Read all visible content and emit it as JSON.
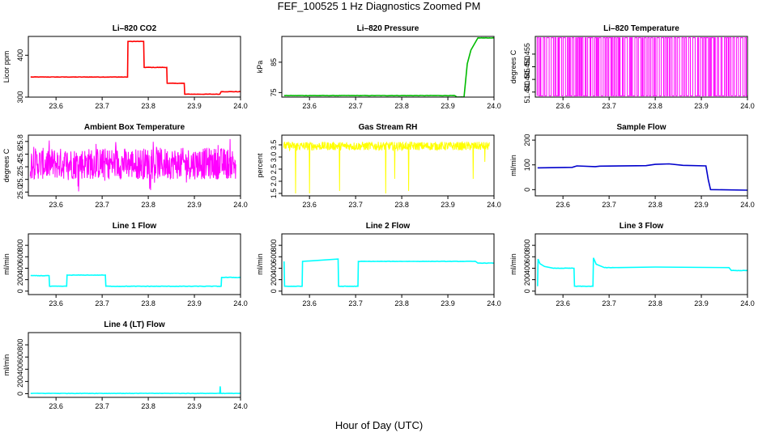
{
  "figure": {
    "title": "FEF_100525  1 Hz Diagnostics Zoomed PM",
    "xlabel": "Hour of Day (UTC)"
  },
  "chart_data": [
    {
      "type": "line",
      "id": "co2",
      "title": "Li–820 CO2",
      "ylabel": "Licor ppm",
      "color": "#ff0000",
      "xlim": [
        23.54,
        24.0
      ],
      "ylim": [
        300,
        445
      ],
      "xticks": [
        23.6,
        23.7,
        23.8,
        23.9,
        24.0
      ],
      "xtick_labels": [
        "23.6",
        "23.7",
        "23.8",
        "23.9",
        "24.0"
      ],
      "yticks": [
        300,
        400
      ],
      "ytick_labels": [
        "300",
        "400"
      ],
      "series": [
        {
          "x": [
            23.545,
            23.755,
            23.756,
            23.79,
            23.791,
            23.84,
            23.841,
            23.878,
            23.879,
            23.955,
            23.958,
            24.0
          ],
          "y": [
            348,
            348,
            433,
            433,
            371,
            371,
            333,
            333,
            307,
            307,
            313,
            313
          ]
        }
      ]
    },
    {
      "type": "line",
      "id": "pressure",
      "title": "Li–820 Pressure",
      "ylabel": "kPa",
      "color": "#00bb00",
      "xlim": [
        23.54,
        24.0
      ],
      "ylim": [
        73.5,
        93.5
      ],
      "xticks": [
        23.6,
        23.7,
        23.8,
        23.9,
        24.0
      ],
      "xtick_labels": [
        "23.6",
        "23.7",
        "23.8",
        "23.9",
        "24.0"
      ],
      "yticks": [
        75,
        85
      ],
      "ytick_labels": [
        "75",
        "85"
      ],
      "series": [
        {
          "x": [
            23.545,
            23.915,
            23.92,
            23.935,
            23.942,
            23.95,
            23.965,
            24.0
          ],
          "y": [
            74.0,
            74.0,
            73.5,
            73.5,
            84.5,
            89,
            93,
            93
          ]
        }
      ]
    },
    {
      "type": "line",
      "id": "temperature",
      "title": "Li–820 Temperature",
      "ylabel": "degrees C",
      "color": "#ff00ff",
      "xlim": [
        23.54,
        24.0
      ],
      "ylim": [
        51.438,
        51.462
      ],
      "xticks": [
        23.6,
        23.7,
        23.8,
        23.9,
        24.0
      ],
      "xtick_labels": [
        "23.6",
        "23.7",
        "23.8",
        "23.9",
        "24.0"
      ],
      "yticks": [
        51.44,
        51.445,
        51.45,
        51.455
      ],
      "ytick_labels": [
        "51.440",
        "51.445",
        "51.450",
        "51.455"
      ],
      "note": "value toggles between 51.4385 and 51.4615",
      "series": [
        {
          "low": 51.4385,
          "high": 51.4615
        }
      ]
    },
    {
      "type": "line",
      "id": "box-temp",
      "title": "Ambient Box Temperature",
      "ylabel": "degrees C",
      "color": "#ff00ff",
      "xlim": [
        23.54,
        24.0
      ],
      "ylim": [
        24.94,
        25.9
      ],
      "xticks": [
        23.6,
        23.7,
        23.8,
        23.9,
        24.0
      ],
      "xtick_labels": [
        "23.6",
        "23.7",
        "23.8",
        "23.9",
        "24.0"
      ],
      "yticks": [
        25.0,
        25.2,
        25.4,
        25.6,
        25.8
      ],
      "ytick_labels": [
        "25.0",
        "25.2",
        "25.4",
        "25.6",
        "25.8"
      ],
      "series": [
        {
          "mean": 25.45,
          "min": 25.0,
          "max": 25.85
        }
      ]
    },
    {
      "type": "line",
      "id": "rh",
      "title": "Gas Stream RH",
      "ylabel": "percent",
      "color": "#ffff00",
      "xlim": [
        23.54,
        24.0
      ],
      "ylim": [
        1.4,
        3.9
      ],
      "xticks": [
        23.6,
        23.7,
        23.8,
        23.9,
        24.0
      ],
      "xtick_labels": [
        "23.6",
        "23.7",
        "23.8",
        "23.9",
        "24.0"
      ],
      "yticks": [
        1.5,
        2.0,
        2.5,
        3.0,
        3.5
      ],
      "ytick_labels": [
        "1.5",
        "2.0",
        "2.5",
        "3.0",
        "3.5"
      ],
      "series": [
        {
          "mean": 3.45,
          "spikes_x": [
            23.57,
            23.6,
            23.665,
            23.765,
            23.785,
            23.815,
            23.955,
            23.98
          ],
          "spikes_y": [
            1.5,
            1.5,
            1.6,
            1.5,
            2.1,
            1.6,
            2.1,
            2.8
          ]
        }
      ]
    },
    {
      "type": "line",
      "id": "sample-flow",
      "title": "Sample Flow",
      "ylabel": "ml/min",
      "color": "#0000cc",
      "xlim": [
        23.54,
        24.0
      ],
      "ylim": [
        -25,
        220
      ],
      "xticks": [
        23.6,
        23.7,
        23.8,
        23.9,
        24.0
      ],
      "xtick_labels": [
        "23.6",
        "23.7",
        "23.8",
        "23.9",
        "24.0"
      ],
      "yticks": [
        0,
        100,
        200
      ],
      "ytick_labels": [
        "0",
        "100",
        "200"
      ],
      "series": [
        {
          "x": [
            23.545,
            23.62,
            23.63,
            23.67,
            23.68,
            23.78,
            23.8,
            23.83,
            23.86,
            23.91,
            23.915,
            23.92,
            24.0
          ],
          "y": [
            88,
            90,
            96,
            93,
            95,
            97,
            102,
            104,
            98,
            96,
            40,
            0,
            -2
          ]
        }
      ]
    },
    {
      "type": "line",
      "id": "line1",
      "title": "Line 1 Flow",
      "ylabel": "ml/min",
      "color": "#00ffff",
      "xlim": [
        23.54,
        24.0
      ],
      "ylim": [
        -60,
        1000
      ],
      "xticks": [
        23.6,
        23.7,
        23.8,
        23.9,
        24.0
      ],
      "xtick_labels": [
        "23.6",
        "23.7",
        "23.8",
        "23.9",
        "24.0"
      ],
      "yticks": [
        0,
        200,
        400,
        600,
        800
      ],
      "ytick_labels": [
        "0",
        "200",
        "400",
        "600",
        "800"
      ],
      "series": [
        {
          "x": [
            23.545,
            23.585,
            23.586,
            23.623,
            23.624,
            23.707,
            23.708,
            23.958,
            23.959,
            24.0
          ],
          "y": [
            270,
            270,
            85,
            85,
            280,
            280,
            85,
            85,
            240,
            240
          ]
        }
      ]
    },
    {
      "type": "line",
      "id": "line2",
      "title": "Line 2 Flow",
      "ylabel": "ml/min",
      "color": "#00ffff",
      "xlim": [
        23.54,
        24.0
      ],
      "ylim": [
        -60,
        1000
      ],
      "xticks": [
        23.6,
        23.7,
        23.8,
        23.9,
        24.0
      ],
      "xtick_labels": [
        "23.6",
        "23.7",
        "23.8",
        "23.9",
        "24.0"
      ],
      "yticks": [
        0,
        200,
        400,
        600,
        800
      ],
      "ytick_labels": [
        "0",
        "200",
        "400",
        "600",
        "800"
      ],
      "series": [
        {
          "x": [
            23.545,
            23.546,
            23.548,
            23.584,
            23.585,
            23.662,
            23.663,
            23.705,
            23.706,
            23.96,
            23.965,
            24.0
          ],
          "y": [
            520,
            85,
            85,
            85,
            520,
            560,
            85,
            85,
            520,
            520,
            490,
            490
          ]
        }
      ]
    },
    {
      "type": "line",
      "id": "line3",
      "title": "Line 3 Flow",
      "ylabel": "ml/min",
      "color": "#00ffff",
      "xlim": [
        23.54,
        24.0
      ],
      "ylim": [
        -60,
        1000
      ],
      "xticks": [
        23.6,
        23.7,
        23.8,
        23.9,
        24.0
      ],
      "xtick_labels": [
        "23.6",
        "23.7",
        "23.8",
        "23.9",
        "24.0"
      ],
      "yticks": [
        0,
        200,
        400,
        600,
        800
      ],
      "ytick_labels": [
        "0",
        "200",
        "400",
        "600",
        "800"
      ],
      "series": [
        {
          "x": [
            23.545,
            23.546,
            23.55,
            23.56,
            23.58,
            23.624,
            23.625,
            23.665,
            23.666,
            23.672,
            23.69,
            23.71,
            23.8,
            23.96,
            23.965,
            24.0
          ],
          "y": [
            85,
            560,
            480,
            430,
            400,
            400,
            85,
            85,
            580,
            470,
            410,
            410,
            420,
            410,
            360,
            360
          ]
        }
      ]
    },
    {
      "type": "line",
      "id": "line4",
      "title": "Line 4 (LT) Flow",
      "ylabel": "ml/min",
      "color": "#00ffff",
      "xlim": [
        23.54,
        24.0
      ],
      "ylim": [
        -60,
        1000
      ],
      "xticks": [
        23.6,
        23.7,
        23.8,
        23.9,
        24.0
      ],
      "xtick_labels": [
        "23.6",
        "23.7",
        "23.8",
        "23.9",
        "24.0"
      ],
      "yticks": [
        0,
        200,
        400,
        600,
        800
      ],
      "ytick_labels": [
        "0",
        "200",
        "400",
        "600",
        "800"
      ],
      "series": [
        {
          "x": [
            23.545,
            23.955,
            23.956,
            23.957,
            23.958,
            24.0
          ],
          "y": [
            5,
            5,
            120,
            5,
            5,
            5
          ]
        }
      ]
    }
  ]
}
